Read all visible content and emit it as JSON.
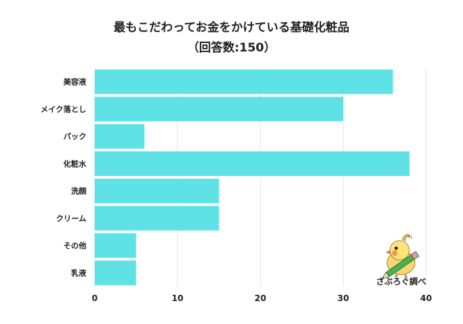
{
  "chart_data": {
    "type": "bar",
    "orientation": "horizontal",
    "title": "最もこだわってお金をかけている基礎化粧品",
    "subtitle": "（回答数:150）",
    "categories": [
      "美容液",
      "メイク落とし",
      "パック",
      "化粧水",
      "洗顔",
      "クリーム",
      "その他",
      "乳液"
    ],
    "values": [
      36,
      30,
      6,
      38,
      15,
      15,
      5,
      5
    ],
    "xlim": [
      0,
      40
    ],
    "xticks": [
      0,
      10,
      20,
      30,
      40
    ],
    "grid": true,
    "bar_color": "#5EE2E6",
    "grid_color": "#E3E3E3"
  },
  "credit": {
    "text": "さぶろぐ調べ",
    "icon": "cockatiel-mascot-with-pencil-icon"
  }
}
